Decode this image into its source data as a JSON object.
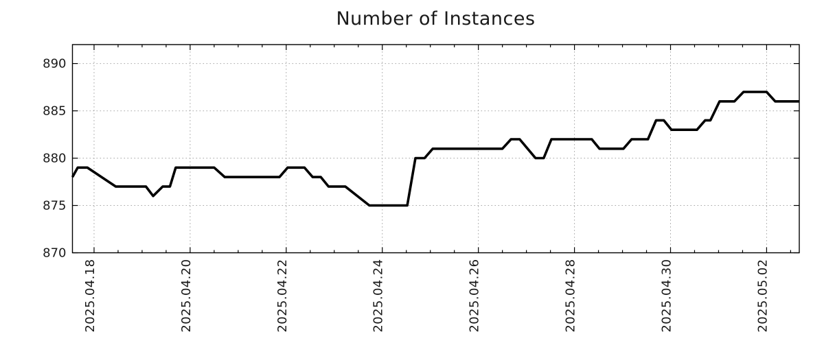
{
  "window": {
    "background": "#ffffff"
  },
  "chart_data": {
    "type": "line",
    "title": "Number of Instances",
    "legend": "none",
    "grid": {
      "show": true,
      "style": "dotted",
      "color": "#a6a6a6"
    },
    "x_axis": {
      "label": "",
      "unit": "days since 2025-04-18 00:00",
      "range": [
        -0.45,
        14.68
      ],
      "minor_tick_step": 0.5,
      "major_ticks": [
        {
          "x": 0,
          "label": "2025.04.18"
        },
        {
          "x": 2,
          "label": "2025.04.20"
        },
        {
          "x": 4,
          "label": "2025.04.22"
        },
        {
          "x": 6,
          "label": "2025.04.24"
        },
        {
          "x": 8,
          "label": "2025.04.26"
        },
        {
          "x": 10,
          "label": "2025.04.28"
        },
        {
          "x": 12,
          "label": "2025.04.30"
        },
        {
          "x": 14,
          "label": "2025.05.02"
        }
      ],
      "label_rotation_deg": -90
    },
    "y_axis": {
      "label": "",
      "range": [
        870,
        892
      ],
      "major_ticks": [
        870,
        875,
        880,
        885,
        890
      ]
    },
    "series": [
      {
        "name": "Number of Instances",
        "color": "#000000",
        "line_width": 3.6,
        "points": [
          [
            -0.45,
            878
          ],
          [
            -0.34,
            879
          ],
          [
            -0.14,
            879
          ],
          [
            0.45,
            877
          ],
          [
            1.08,
            877
          ],
          [
            1.23,
            876
          ],
          [
            1.43,
            877
          ],
          [
            1.58,
            877
          ],
          [
            1.7,
            879
          ],
          [
            2.5,
            879
          ],
          [
            2.72,
            878
          ],
          [
            3.86,
            878
          ],
          [
            4.03,
            879
          ],
          [
            4.38,
            879
          ],
          [
            4.55,
            878
          ],
          [
            4.72,
            878
          ],
          [
            4.88,
            877
          ],
          [
            5.23,
            877
          ],
          [
            5.73,
            875
          ],
          [
            6.52,
            875
          ],
          [
            6.69,
            880
          ],
          [
            6.88,
            880
          ],
          [
            7.05,
            881
          ],
          [
            8.5,
            881
          ],
          [
            8.68,
            882
          ],
          [
            8.86,
            882
          ],
          [
            9.19,
            880
          ],
          [
            9.36,
            880
          ],
          [
            9.52,
            882
          ],
          [
            10.36,
            882
          ],
          [
            10.52,
            881
          ],
          [
            11.02,
            881
          ],
          [
            11.19,
            882
          ],
          [
            11.53,
            882
          ],
          [
            11.7,
            884
          ],
          [
            11.86,
            884
          ],
          [
            12.02,
            883
          ],
          [
            12.55,
            883
          ],
          [
            12.72,
            884
          ],
          [
            12.83,
            884
          ],
          [
            13.02,
            886
          ],
          [
            13.33,
            886
          ],
          [
            13.52,
            887
          ],
          [
            14.0,
            887
          ],
          [
            14.18,
            886
          ],
          [
            14.68,
            886
          ]
        ]
      }
    ]
  }
}
